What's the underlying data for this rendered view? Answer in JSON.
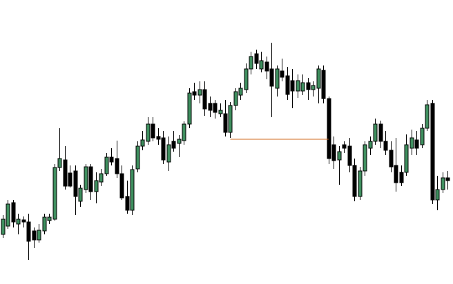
{
  "chart_data": {
    "type": "candlestick",
    "ylim": [
      0,
      412
    ],
    "up_color": "#3f8f5f",
    "down_color": "#000000",
    "open": [
      72,
      84,
      118,
      87,
      93,
      90,
      77,
      64,
      77,
      92,
      94,
      169,
      180,
      161,
      164,
      120,
      137,
      170,
      134,
      148,
      160,
      184,
      182,
      160,
      127,
      107,
      167,
      200,
      207,
      232,
      214,
      212,
      177,
      207,
      204,
      208,
      232,
      279,
      274,
      282,
      262,
      262,
      247,
      247,
      220,
      259,
      274,
      282,
      312,
      334,
      312,
      322,
      312,
      284,
      309,
      302,
      295,
      280,
      280,
      292,
      282,
      284,
      310,
      269,
      202,
      180,
      202,
      200,
      172,
      127,
      164,
      197,
      207,
      232,
      207,
      194,
      172,
      162,
      162,
      197,
      209,
      202,
      226,
      262,
      122,
      137,
      154
    ],
    "high": [
      100,
      122,
      122,
      102,
      98,
      102,
      82,
      87,
      102,
      102,
      174,
      226,
      200,
      172,
      172,
      144,
      174,
      174,
      162,
      167,
      190,
      197,
      208,
      172,
      150,
      172,
      207,
      222,
      242,
      242,
      226,
      222,
      214,
      222,
      216,
      236,
      284,
      292,
      294,
      294,
      272,
      267,
      262,
      267,
      264,
      284,
      292,
      320,
      337,
      340,
      337,
      330,
      350,
      317,
      327,
      315,
      312,
      304,
      304,
      299,
      294,
      317,
      317,
      272,
      214,
      200,
      207,
      212,
      182,
      170,
      207,
      214,
      240,
      237,
      222,
      207,
      212,
      172,
      217,
      224,
      222,
      232,
      267,
      267,
      157,
      162,
      164
    ],
    "low": [
      67,
      80,
      82,
      72,
      82,
      35,
      52,
      60,
      72,
      87,
      92,
      164,
      137,
      140,
      100,
      112,
      132,
      122,
      117,
      142,
      157,
      172,
      154,
      122,
      102,
      100,
      162,
      194,
      202,
      207,
      202,
      174,
      164,
      192,
      184,
      202,
      226,
      267,
      262,
      244,
      242,
      240,
      242,
      214,
      212,
      252,
      267,
      277,
      304,
      312,
      307,
      297,
      242,
      272,
      294,
      267,
      255,
      270,
      274,
      267,
      272,
      262,
      262,
      174,
      167,
      144,
      190,
      162,
      120,
      122,
      157,
      187,
      202,
      197,
      187,
      162,
      134,
      142,
      157,
      187,
      187,
      197,
      222,
      116,
      107,
      132,
      137
    ],
    "close": [
      94,
      116,
      90,
      94,
      90,
      62,
      64,
      78,
      97,
      97,
      169,
      182,
      142,
      142,
      127,
      139,
      170,
      134,
      150,
      160,
      184,
      177,
      160,
      125,
      107,
      166,
      200,
      209,
      232,
      212,
      210,
      180,
      202,
      197,
      210,
      232,
      277,
      274,
      282,
      254,
      252,
      249,
      252,
      220,
      259,
      279,
      284,
      312,
      330,
      320,
      324,
      309,
      287,
      312,
      300,
      275,
      280,
      295,
      292,
      282,
      288,
      312,
      269,
      182,
      179,
      192,
      197,
      172,
      127,
      164,
      202,
      207,
      232,
      207,
      194,
      170,
      147,
      147,
      202,
      212,
      197,
      226,
      260,
      122,
      137,
      154,
      150
    ],
    "level": {
      "value": 210,
      "start": 44,
      "end": 63,
      "color": "#d2691e"
    }
  }
}
